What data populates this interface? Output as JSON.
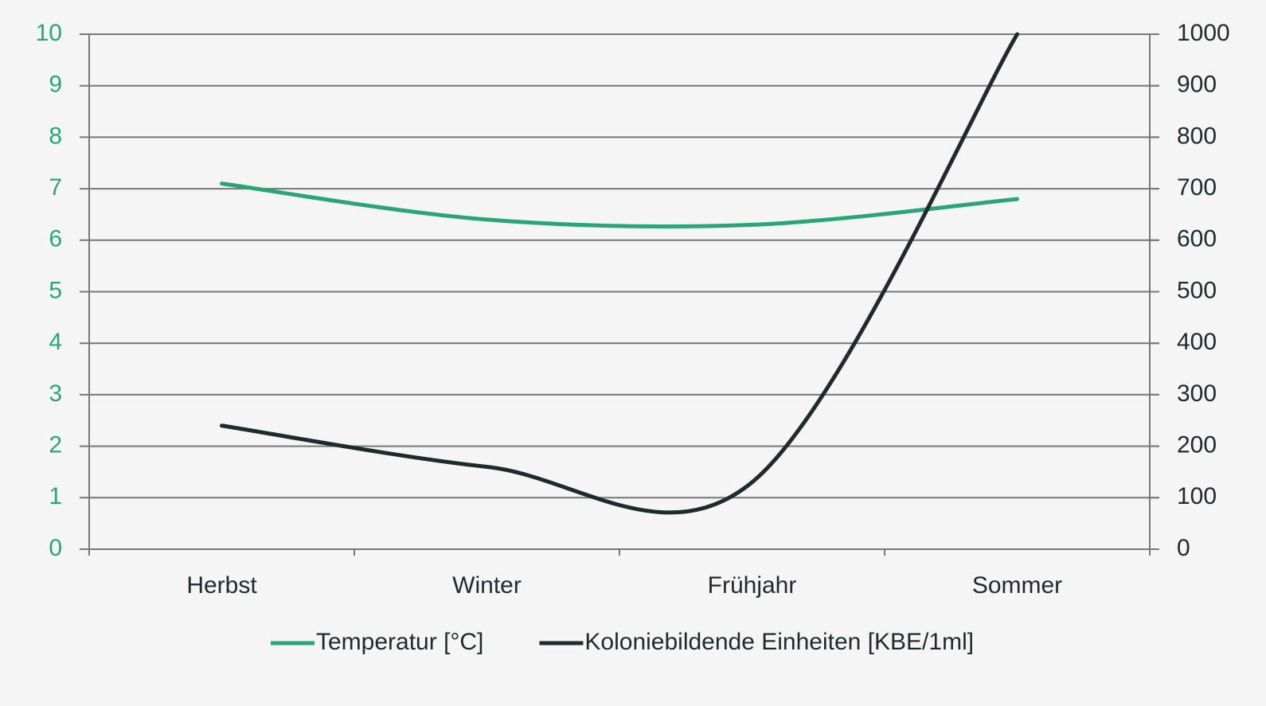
{
  "chart_data": {
    "type": "line",
    "categories": [
      "Herbst",
      "Winter",
      "Frühjahr",
      "Sommer"
    ],
    "series": [
      {
        "name": "Temperatur [°C]",
        "color": "#2aa57a",
        "values": [
          7.1,
          6.4,
          6.3,
          6.8
        ]
      },
      {
        "name": "Koloniebildende Einheiten [KBE/1ml]",
        "color": "#1f2b2a",
        "values": [
          240,
          160,
          130,
          1000
        ],
        "axis": "y2"
      }
    ],
    "ylim": [
      0,
      10
    ],
    "yticks": [
      0,
      1,
      2,
      3,
      4,
      5,
      6,
      7,
      8,
      9,
      10
    ],
    "y2lim": [
      0,
      1000
    ],
    "y2ticks": [
      0,
      100,
      200,
      300,
      400,
      500,
      600,
      700,
      800,
      900,
      1000
    ],
    "ycolor": "#2aa57a",
    "y2color": "#1f2b2a",
    "grid": true,
    "smooth": true,
    "legend": "bottom"
  }
}
